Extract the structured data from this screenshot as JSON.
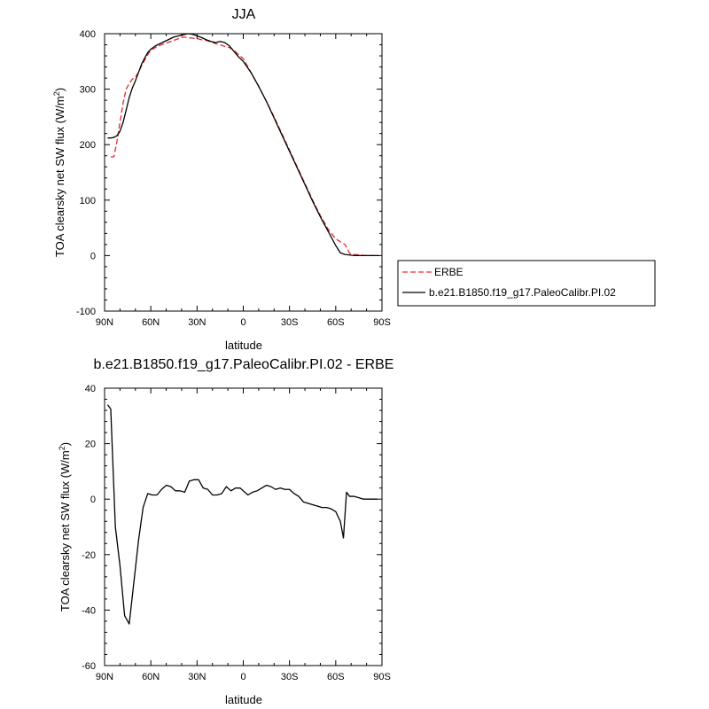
{
  "chart_data": [
    {
      "type": "line",
      "title": "JJA",
      "xlabel": "latitude",
      "ylabel": "TOA clearsky net SW flux (W/m",
      "ylabel_sup": "2",
      "ylabel_close": ")",
      "xlim": [
        90,
        -90
      ],
      "ylim": [
        -100,
        400
      ],
      "x_ticks": [
        90,
        60,
        30,
        0,
        -30,
        -60,
        -90
      ],
      "x_tick_labels": [
        "90N",
        "60N",
        "30N",
        "0",
        "30S",
        "60S",
        "90S"
      ],
      "y_ticks": [
        -100,
        0,
        100,
        200,
        300,
        400
      ],
      "y_tick_labels": [
        "-100",
        "0",
        "100",
        "200",
        "300",
        "400"
      ],
      "legend_position": "right",
      "series": [
        {
          "name": "ERBE",
          "style": "dashed",
          "color": "#e8262b",
          "x": [
            86,
            84,
            82,
            80,
            78,
            76,
            74,
            72,
            70,
            68,
            66,
            64,
            62,
            60,
            57,
            54,
            51,
            48,
            45,
            42,
            39,
            36,
            33,
            30,
            27,
            24,
            21,
            18,
            15,
            12,
            9,
            6,
            3,
            0,
            -5,
            -10,
            -15,
            -20,
            -25,
            -30,
            -35,
            -40,
            -45,
            -50,
            -55,
            -60,
            -63,
            -66,
            -69,
            -72,
            -76,
            -80,
            -84,
            -88
          ],
          "values": [
            178,
            178,
            205,
            240,
            275,
            300,
            310,
            318,
            322,
            330,
            342,
            352,
            362,
            370,
            375,
            379,
            382,
            385,
            388,
            391,
            394,
            393,
            392,
            391,
            389,
            388,
            385,
            382,
            380,
            377,
            375,
            370,
            362,
            355,
            330,
            305,
            278,
            250,
            220,
            190,
            160,
            130,
            100,
            72,
            48,
            30,
            25,
            20,
            4,
            2,
            1,
            0,
            0,
            0
          ]
        },
        {
          "name": "b.e21.B1850.f19_g17.PaleoCalibr.PI.02",
          "style": "solid",
          "color": "#000000",
          "x": [
            88,
            86,
            84,
            82,
            80,
            78,
            76,
            74,
            72,
            70,
            68,
            66,
            64,
            62,
            60,
            57,
            54,
            51,
            48,
            45,
            42,
            39,
            36,
            33,
            30,
            27,
            24,
            21,
            18,
            15,
            12,
            9,
            6,
            3,
            0,
            -5,
            -10,
            -15,
            -20,
            -25,
            -30,
            -35,
            -40,
            -45,
            -50,
            -55,
            -60,
            -63,
            -66,
            -69,
            -72,
            -76,
            -80,
            -84,
            -88
          ],
          "values": [
            212,
            212,
            213,
            216,
            224,
            240,
            262,
            285,
            302,
            315,
            330,
            345,
            356,
            366,
            372,
            378,
            382,
            386,
            390,
            394,
            396,
            398,
            400,
            399,
            396,
            393,
            389,
            386,
            384,
            386,
            384,
            378,
            368,
            358,
            350,
            330,
            305,
            278,
            248,
            218,
            188,
            158,
            128,
            98,
            70,
            44,
            18,
            5,
            2,
            1,
            0,
            0,
            0,
            0,
            0
          ]
        }
      ]
    },
    {
      "type": "line",
      "title": "b.e21.B1850.f19_g17.PaleoCalibr.PI.02 - ERBE",
      "xlabel": "latitude",
      "ylabel": "TOA clearsky net SW flux (W/m",
      "ylabel_sup": "2",
      "ylabel_close": ")",
      "xlim": [
        90,
        -90
      ],
      "ylim": [
        -60,
        40
      ],
      "x_ticks": [
        90,
        60,
        30,
        0,
        -30,
        -60,
        -90
      ],
      "x_tick_labels": [
        "90N",
        "60N",
        "30N",
        "0",
        "30S",
        "60S",
        "90S"
      ],
      "y_ticks": [
        -60,
        -40,
        -20,
        0,
        20,
        40
      ],
      "y_tick_labels": [
        "-60",
        "-40",
        "-20",
        "0",
        "20",
        "40"
      ],
      "series": [
        {
          "style": "solid",
          "color": "#000000",
          "x": [
            88,
            86,
            83,
            80,
            77,
            74,
            71,
            68,
            65,
            62,
            59,
            56,
            53,
            50,
            47,
            44,
            41,
            38,
            35,
            32,
            29,
            26,
            23,
            20,
            17,
            14,
            11,
            8,
            5,
            2,
            0,
            -3,
            -6,
            -9,
            -12,
            -15,
            -18,
            -21,
            -24,
            -27,
            -30,
            -33,
            -36,
            -39,
            -42,
            -45,
            -48,
            -51,
            -54,
            -57,
            -60,
            -63,
            -65,
            -67,
            -69,
            -72,
            -75,
            -78,
            -81,
            -84,
            -87
          ],
          "values": [
            34,
            32.5,
            -10,
            -24,
            -42,
            -45,
            -30,
            -15,
            -3,
            2,
            1.5,
            1.5,
            3.5,
            5,
            4.5,
            3,
            3,
            2.5,
            6.5,
            7,
            7,
            4,
            3.5,
            1.5,
            1.5,
            2,
            4.5,
            3,
            4,
            4,
            3,
            1.5,
            2.5,
            3,
            4,
            5,
            4.5,
            3.5,
            4,
            3.5,
            3.5,
            2,
            1,
            -1,
            -1.5,
            -2,
            -2.5,
            -3,
            -3,
            -3.5,
            -4.5,
            -8,
            -14,
            2.5,
            1,
            1,
            0.5,
            0,
            0,
            0,
            0
          ]
        }
      ]
    }
  ]
}
